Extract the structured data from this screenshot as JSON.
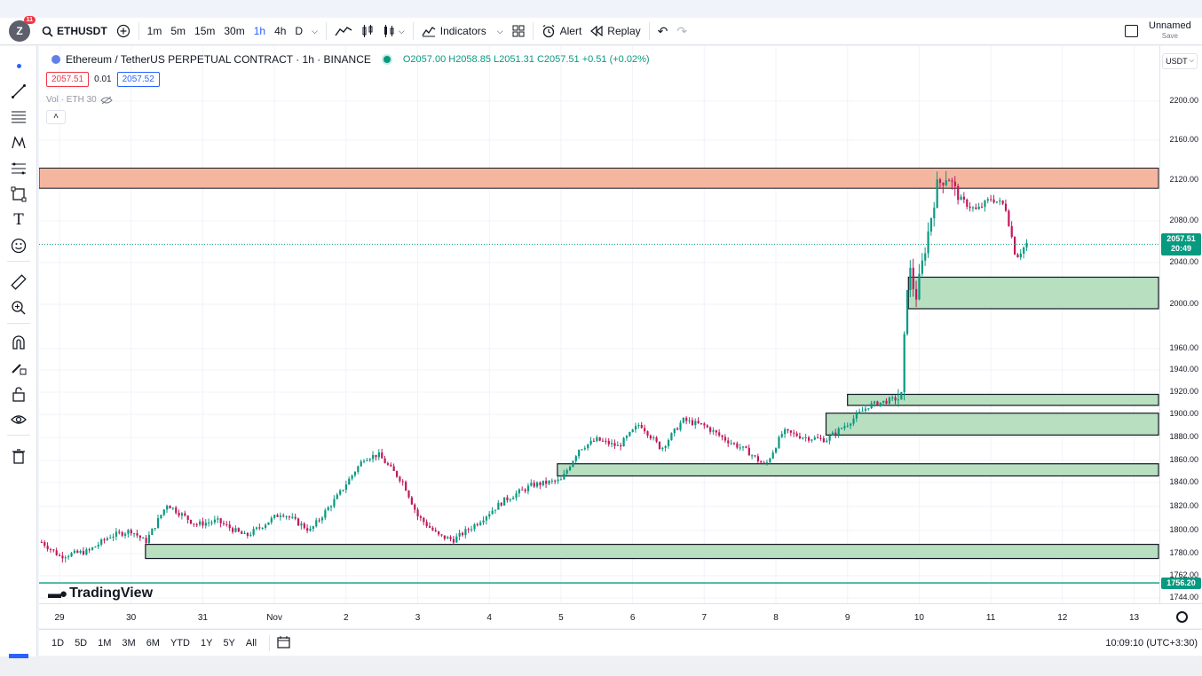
{
  "header": {
    "badge_count": "11",
    "avatar_letter": "Z",
    "symbol": "ETHUSDT",
    "intervals": [
      "1m",
      "5m",
      "15m",
      "30m",
      "1h",
      "4h",
      "D"
    ],
    "indicators_label": "Indicators",
    "alert_label": "Alert",
    "replay_label": "Replay",
    "layout_name": "Unnamed",
    "save_label": "Save"
  },
  "legend": {
    "title": "Ethereum / TetherUS PERPETUAL CONTRACT · 1h · BINANCE",
    "ohlc": "O2057.00  H2058.85  L2051.31  C2057.51  +0.51 (+0.02%)",
    "sell_price": "2057.51",
    "spread": "0.01",
    "buy_price": "2057.52",
    "volume_label": "Vol · ETH 30"
  },
  "price_axis": {
    "currency": "USDT",
    "ticks": [
      "2200.00",
      "2160.00",
      "2120.00",
      "2080.00",
      "2040.00",
      "2000.00",
      "1960.00",
      "1940.00",
      "1920.00",
      "1900.00",
      "1880.00",
      "1860.00",
      "1840.00",
      "1820.00",
      "1800.00",
      "1780.00",
      "1762.00",
      "1744.00"
    ],
    "current_price": "2057.51",
    "countdown": "20:49",
    "line_label": "1756.20"
  },
  "time_axis": {
    "ticks": [
      "29",
      "30",
      "31",
      "Nov",
      "2",
      "3",
      "4",
      "5",
      "6",
      "7",
      "8",
      "9",
      "10",
      "11",
      "12",
      "13"
    ]
  },
  "bottom": {
    "ranges": [
      "1D",
      "5D",
      "1M",
      "3M",
      "6M",
      "YTD",
      "1Y",
      "5Y",
      "All"
    ],
    "clock": "10:09:10 (UTC+3:30)"
  },
  "watermark": "TradingView",
  "colors": {
    "up": "#089981",
    "down": "#c2185b",
    "resistance_zone": "#f4b69e",
    "support_zone": "#b7dfc0"
  },
  "chart_data": {
    "type": "candlestick",
    "timeframe": "1h",
    "ylim": [
      1740,
      2230
    ],
    "x_ticks": [
      "29",
      "30",
      "31",
      "Nov",
      "2",
      "3",
      "4",
      "5",
      "6",
      "7",
      "8",
      "9",
      "10",
      "11",
      "12",
      "13"
    ],
    "resistance_zone": [
      2112,
      2132
    ],
    "support_zones": [
      [
        1996,
        2026
      ],
      [
        1908,
        1918
      ],
      [
        1882,
        1901
      ],
      [
        1846,
        1857
      ],
      [
        1776,
        1788
      ]
    ],
    "horizontal_line": 1756.2,
    "current_price": 2057.51,
    "price_path": [
      {
        "day": 28.75,
        "price": 1790
      },
      {
        "day": 29.0,
        "price": 1778
      },
      {
        "day": 29.4,
        "price": 1782
      },
      {
        "day": 29.7,
        "price": 1795
      },
      {
        "day": 30.0,
        "price": 1800
      },
      {
        "day": 30.2,
        "price": 1790
      },
      {
        "day": 30.5,
        "price": 1822
      },
      {
        "day": 30.9,
        "price": 1805
      },
      {
        "day": 31.2,
        "price": 1808
      },
      {
        "day": 31.6,
        "price": 1795
      },
      {
        "day": 32.1,
        "price": 1815
      },
      {
        "day": 32.5,
        "price": 1800
      },
      {
        "day": 32.9,
        "price": 1830
      },
      {
        "day": 33.25,
        "price": 1862
      },
      {
        "day": 33.45,
        "price": 1865
      },
      {
        "day": 33.8,
        "price": 1840
      },
      {
        "day": 34.0,
        "price": 1812
      },
      {
        "day": 34.3,
        "price": 1795
      },
      {
        "day": 34.5,
        "price": 1792
      },
      {
        "day": 34.8,
        "price": 1805
      },
      {
        "day": 35.2,
        "price": 1825
      },
      {
        "day": 35.6,
        "price": 1838
      },
      {
        "day": 36.0,
        "price": 1842
      },
      {
        "day": 36.25,
        "price": 1870
      },
      {
        "day": 36.5,
        "price": 1878
      },
      {
        "day": 36.8,
        "price": 1872
      },
      {
        "day": 37.1,
        "price": 1892
      },
      {
        "day": 37.4,
        "price": 1870
      },
      {
        "day": 37.7,
        "price": 1895
      },
      {
        "day": 38.0,
        "price": 1890
      },
      {
        "day": 38.3,
        "price": 1878
      },
      {
        "day": 38.6,
        "price": 1868
      },
      {
        "day": 38.85,
        "price": 1855
      },
      {
        "day": 39.1,
        "price": 1885
      },
      {
        "day": 39.4,
        "price": 1880
      },
      {
        "day": 39.7,
        "price": 1878
      },
      {
        "day": 40.0,
        "price": 1892
      },
      {
        "day": 40.3,
        "price": 1908
      },
      {
        "day": 40.55,
        "price": 1912
      },
      {
        "day": 40.75,
        "price": 1915
      },
      {
        "day": 40.85,
        "price": 2040
      },
      {
        "day": 40.95,
        "price": 2005
      },
      {
        "day": 41.1,
        "price": 2060
      },
      {
        "day": 41.25,
        "price": 2115
      },
      {
        "day": 41.4,
        "price": 2125
      },
      {
        "day": 41.55,
        "price": 2102
      },
      {
        "day": 41.8,
        "price": 2090
      },
      {
        "day": 42.0,
        "price": 2102
      },
      {
        "day": 42.2,
        "price": 2095
      },
      {
        "day": 42.35,
        "price": 2045
      },
      {
        "day": 42.5,
        "price": 2058
      }
    ]
  }
}
